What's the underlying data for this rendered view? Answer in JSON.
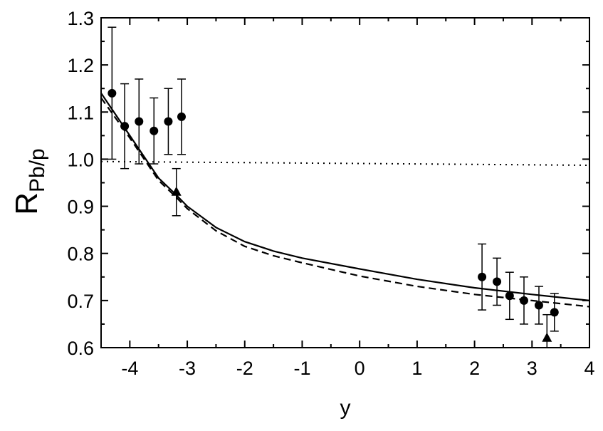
{
  "chart_data": {
    "type": "scatter",
    "xlabel": "y",
    "ylabel": "R",
    "ylabel_sub": "Pb/p",
    "xlim": [
      -4.5,
      4
    ],
    "ylim": [
      0.6,
      1.3
    ],
    "xticks": [
      "-4",
      "-3",
      "-2",
      "-1",
      "0",
      "1",
      "2",
      "3",
      "4"
    ],
    "yticks": [
      "0.6",
      "0.7",
      "0.8",
      "0.9",
      "1.0",
      "1.1",
      "1.2",
      "1.3"
    ],
    "grid": false,
    "points": [
      {
        "marker": "circle",
        "x": -4.31,
        "y": 1.14,
        "lo": 1.0,
        "hi": 1.28
      },
      {
        "marker": "circle",
        "x": -4.09,
        "y": 1.07,
        "lo": 0.98,
        "hi": 1.16
      },
      {
        "marker": "circle",
        "x": -3.84,
        "y": 1.08,
        "lo": 0.99,
        "hi": 1.17
      },
      {
        "marker": "circle",
        "x": -3.58,
        "y": 1.06,
        "lo": 0.99,
        "hi": 1.13
      },
      {
        "marker": "circle",
        "x": -3.33,
        "y": 1.08,
        "lo": 1.01,
        "hi": 1.15
      },
      {
        "marker": "circle",
        "x": -3.1,
        "y": 1.09,
        "lo": 1.01,
        "hi": 1.17
      },
      {
        "marker": "triangle",
        "x": -3.19,
        "y": 0.93,
        "lo": 0.88,
        "hi": 0.98
      },
      {
        "marker": "circle",
        "x": 2.13,
        "y": 0.75,
        "lo": 0.68,
        "hi": 0.82
      },
      {
        "marker": "circle",
        "x": 2.39,
        "y": 0.74,
        "lo": 0.69,
        "hi": 0.79
      },
      {
        "marker": "circle",
        "x": 2.61,
        "y": 0.71,
        "lo": 0.66,
        "hi": 0.76
      },
      {
        "marker": "circle",
        "x": 2.86,
        "y": 0.7,
        "lo": 0.65,
        "hi": 0.75
      },
      {
        "marker": "circle",
        "x": 3.12,
        "y": 0.69,
        "lo": 0.65,
        "hi": 0.73
      },
      {
        "marker": "circle",
        "x": 3.39,
        "y": 0.675,
        "lo": 0.635,
        "hi": 0.715
      },
      {
        "marker": "triangle",
        "x": 3.26,
        "y": 0.62,
        "lo": 0.6,
        "hi": 0.67
      }
    ],
    "curves": [
      {
        "style": "solid",
        "x": [
          -4.5,
          -4,
          -3.5,
          -3.2,
          -3,
          -2.5,
          -2,
          -1.5,
          -1,
          0,
          1,
          2,
          3,
          4
        ],
        "y": [
          1.14,
          1.05,
          0.96,
          0.925,
          0.9,
          0.855,
          0.825,
          0.805,
          0.79,
          0.767,
          0.745,
          0.727,
          0.713,
          0.7
        ]
      },
      {
        "style": "dashed",
        "x": [
          -4.5,
          -4,
          -3.5,
          -3.2,
          -3,
          -2.5,
          -2,
          -1.5,
          -1,
          0,
          1,
          2,
          3,
          4
        ],
        "y": [
          1.13,
          1.045,
          0.955,
          0.92,
          0.895,
          0.848,
          0.815,
          0.795,
          0.78,
          0.752,
          0.73,
          0.713,
          0.7,
          0.687
        ]
      },
      {
        "style": "dotted",
        "x": [
          -4.5,
          4
        ],
        "y": [
          0.995,
          0.987
        ]
      }
    ]
  }
}
